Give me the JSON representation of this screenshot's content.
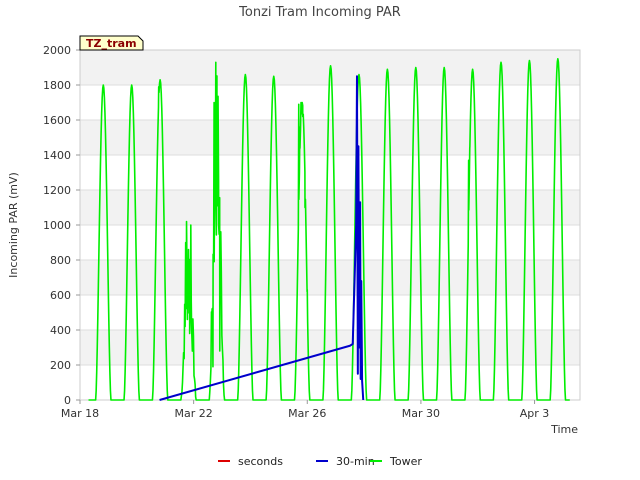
{
  "chart_data": {
    "type": "line",
    "title": "Tonzi Tram Incoming PAR",
    "xlabel": "Time",
    "ylabel": "Incoming PAR (mV)",
    "site_label": "TZ_tram",
    "xlim": [
      0,
      17.6
    ],
    "ylim": [
      0,
      2000
    ],
    "yticks": [
      0,
      200,
      400,
      600,
      800,
      1000,
      1200,
      1400,
      1600,
      1800,
      2000
    ],
    "xticks": [
      {
        "value": 0,
        "label": "Mar 18"
      },
      {
        "value": 4,
        "label": "Mar 22"
      },
      {
        "value": 8,
        "label": "Mar 26"
      },
      {
        "value": 12,
        "label": "Mar 30"
      },
      {
        "value": 16,
        "label": "Apr 3"
      }
    ],
    "grid_bands": true,
    "legend_position": "bottom",
    "colors": {
      "seconds": "#dd0000",
      "30-min": "#0000cc",
      "Tower": "#00ee00"
    },
    "series": [
      {
        "name": "seconds",
        "points": []
      },
      {
        "name": "30-min",
        "points": [
          [
            2.8,
            0
          ],
          [
            9.5,
            310
          ],
          [
            9.6,
            320
          ],
          [
            9.72,
            1000
          ],
          [
            9.75,
            1850
          ],
          [
            9.78,
            150
          ],
          [
            9.8,
            1450
          ],
          [
            9.83,
            300
          ],
          [
            9.86,
            1130
          ],
          [
            9.88,
            120
          ],
          [
            9.9,
            680
          ],
          [
            9.93,
            110
          ],
          [
            9.97,
            0
          ]
        ]
      },
      {
        "name": "Tower",
        "days": [
          {
            "center": 0.82,
            "peak": 1800
          },
          {
            "center": 1.82,
            "peak": 1800
          },
          {
            "center": 2.82,
            "peak": 1830,
            "spikes": [
              [
                2.77,
                1790
              ]
            ]
          },
          {
            "center": 3.82,
            "peak": 1020,
            "noise": true,
            "spikes": [
              [
                3.7,
                420
              ],
              [
                3.72,
                900
              ],
              [
                3.75,
                1020
              ],
              [
                3.78,
                460
              ],
              [
                3.82,
                860
              ],
              [
                3.86,
                380
              ],
              [
                3.9,
                1000
              ],
              [
                3.93,
                400
              ]
            ]
          },
          {
            "center": 4.82,
            "peak": 1930,
            "noise": true,
            "spikes": [
              [
                4.65,
                520
              ],
              [
                4.68,
                190
              ],
              [
                4.72,
                1700
              ],
              [
                4.78,
                1930
              ],
              [
                4.82,
                1400
              ],
              [
                4.88,
                1000
              ],
              [
                4.92,
                280
              ]
            ]
          },
          {
            "center": 5.82,
            "peak": 1860
          },
          {
            "center": 6.82,
            "peak": 1850
          },
          {
            "center": 7.82,
            "peak": 1700,
            "spikes": [
              [
                7.7,
                1690
              ],
              [
                7.74,
                1560
              ],
              [
                7.78,
                1700
              ],
              [
                7.84,
                1620
              ],
              [
                7.92,
                1100
              ],
              [
                8.0,
                630
              ]
            ]
          },
          {
            "center": 8.82,
            "peak": 1910
          },
          {
            "center": 9.82,
            "peak": 1860
          },
          {
            "center": 10.82,
            "peak": 1890
          },
          {
            "center": 11.82,
            "peak": 1900
          },
          {
            "center": 12.82,
            "peak": 1900
          },
          {
            "center": 13.82,
            "peak": 1890,
            "spikes": [
              [
                13.68,
                1370
              ],
              [
                13.72,
                1440
              ]
            ]
          },
          {
            "center": 14.82,
            "peak": 1930
          },
          {
            "center": 15.82,
            "peak": 1940
          },
          {
            "center": 16.82,
            "peak": 1950
          }
        ]
      }
    ],
    "legend": [
      {
        "name": "seconds",
        "label": "seconds"
      },
      {
        "name": "30-min",
        "label": "30-min"
      },
      {
        "name": "Tower",
        "label": "Tower"
      }
    ]
  }
}
